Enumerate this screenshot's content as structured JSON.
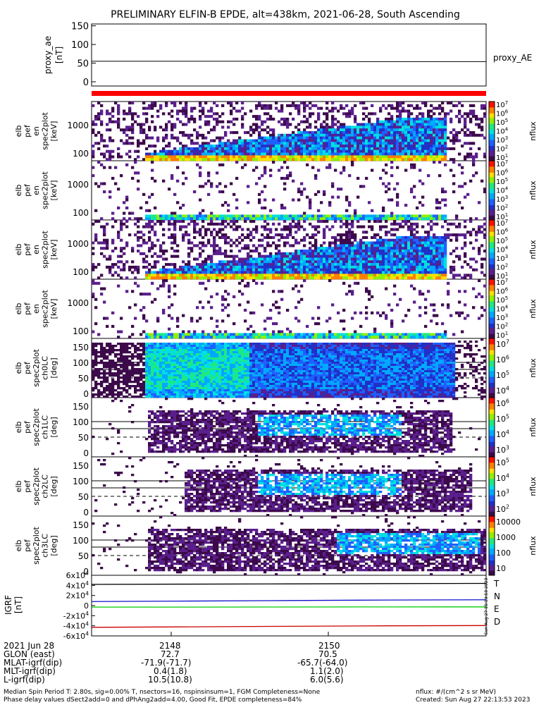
{
  "title": "PRELIMINARY ELFIN-B EPDE, alt=438km, 2021-06-28, South Ascending",
  "proxy_panel": {
    "ylabel": "proxy_ae",
    "units": "[nT]",
    "legend": "proxy_AE",
    "ticks": [
      "150",
      "100",
      "50",
      "0"
    ]
  },
  "spectro_panels": [
    {
      "ylabel": [
        "elb",
        "pef",
        "en",
        "spec2plot",
        "[keV]"
      ],
      "ticks": [
        "1000",
        "100"
      ],
      "cbar_label": "nflux",
      "cbar_ticks": [
        "10^7",
        "10^6",
        "10^5",
        "10^4",
        "10^3",
        "10^2",
        "10^1"
      ]
    },
    {
      "ylabel": [
        "elb",
        "pef",
        "en",
        "spec2plot",
        "[keV]"
      ],
      "ticks": [
        "1000",
        "100"
      ],
      "cbar_label": "nflux",
      "cbar_ticks": [
        "10^7",
        "10^6",
        "10^5",
        "10^4",
        "10^3",
        "10^2",
        "10^1"
      ]
    },
    {
      "ylabel": [
        "elb",
        "pef",
        "en",
        "spec2plot",
        "[keV]"
      ],
      "ticks": [
        "1000",
        "100"
      ],
      "cbar_label": "nflux",
      "cbar_ticks": [
        "10^7",
        "10^6",
        "10^5",
        "10^4",
        "10^3",
        "10^2",
        "10^1"
      ]
    },
    {
      "ylabel": [
        "elb",
        "pef",
        "en",
        "spec2plot",
        "[keV]"
      ],
      "ticks": [
        "1000",
        "100"
      ],
      "cbar_label": "nflux",
      "cbar_ticks": [
        "10^7",
        "10^6",
        "10^5",
        "10^4",
        "10^3",
        "10^2",
        "10^1"
      ]
    }
  ],
  "pa_panels": [
    {
      "ylabel": [
        "elb",
        "pef",
        "spec2plot",
        "ch0LC",
        "[deg]"
      ],
      "ticks": [
        "150",
        "100",
        "50",
        "0"
      ],
      "cbar_label": "nflux",
      "cbar_ticks": [
        "10^7",
        "10^6",
        "10^5",
        "10^4"
      ]
    },
    {
      "ylabel": [
        "elb",
        "pef",
        "spec2plot",
        "ch1LC",
        "[deg]"
      ],
      "ticks": [
        "150",
        "100",
        "50",
        "0"
      ],
      "cbar_label": "nflux",
      "cbar_ticks": [
        "10^6",
        "10^5",
        "10^4",
        "10^3"
      ]
    },
    {
      "ylabel": [
        "elb",
        "pef",
        "spec2plot",
        "ch2LC",
        "[deg]"
      ],
      "ticks": [
        "150",
        "100",
        "50",
        "0"
      ],
      "cbar_label": "nflux",
      "cbar_ticks": [
        "10^5",
        "10^4",
        "10^3",
        "10^2"
      ]
    },
    {
      "ylabel": [
        "elb",
        "pef",
        "spec2plot",
        "ch3LC",
        "[deg]"
      ],
      "ticks": [
        "150",
        "100",
        "50",
        "0"
      ],
      "cbar_label": "nflux",
      "cbar_ticks": [
        "10000",
        "1000",
        "100",
        "10"
      ]
    }
  ],
  "igrf_panel": {
    "ylabel": "IGRF",
    "units": "[nT]",
    "ticks": [
      "6x10^4",
      "4x10^4",
      "2x10^4",
      "0",
      "-2x10^4",
      "-4x10^4",
      "-6x10^4"
    ],
    "legend": [
      "T",
      "N",
      "E",
      "D"
    ],
    "legend_colors": [
      "#000000",
      "#1010cc",
      "#00cc00",
      "#cc0000"
    ],
    "side_note": "Sun Aug 27 15:13:53 2023"
  },
  "colors": {
    "frame": "#000000",
    "bar_red": "#ff0000",
    "dark": "#2a0a2a"
  },
  "chart_data": {
    "type": "heatmap",
    "x_ticks": [
      "2148",
      "2150"
    ],
    "proxy_AE": {
      "name": "proxy_AE",
      "values": [
        55,
        55,
        55,
        55,
        54,
        54,
        54,
        54
      ],
      "ylim": [
        0,
        155
      ]
    },
    "igrf": {
      "series": [
        {
          "name": "T",
          "values": [
            42000,
            42500,
            43000,
            43500,
            44000
          ]
        },
        {
          "name": "N",
          "values": [
            8000,
            9000,
            10000,
            11000,
            11500
          ]
        },
        {
          "name": "E",
          "values": [
            -3000,
            -3000,
            -2800,
            -2600,
            -2500
          ]
        },
        {
          "name": "D",
          "values": [
            -43000,
            -42000,
            -41000,
            -40000,
            -39500
          ]
        }
      ],
      "ylim": [
        -60000,
        60000
      ]
    }
  },
  "footer": {
    "rows": [
      {
        "label": "2021 Jun 28",
        "v1": "2148",
        "v2": "2150"
      },
      {
        "label": "GLON (east)",
        "v1": "72.7",
        "v2": "70.5"
      },
      {
        "label": "MLAT-igrf(dip)",
        "v1": "-71.9(-71.7)",
        "v2": "-65.7(-64.0)"
      },
      {
        "label": "MLT-igrf(dip)",
        "v1": "0.4(1.8)",
        "v2": "1.1(2.0)"
      },
      {
        "label": "L-igrf(dip)",
        "v1": "10.5(10.8)",
        "v2": "6.0(5.6)"
      }
    ],
    "note1": "Median Spin Period T: 2.80s, sig=0.00% T, nsectors=16, nspinsinsum=1, FGM Completeness=None",
    "note2": "Phase delay values dSect2add=0 and dPhAng2add=4.00, Good Fit, EPDE completeness=84%",
    "note3": "nflux: #/(cm^2 s sr MeV)",
    "note4": "Created: Sun Aug 27 22:13:53 2023"
  }
}
